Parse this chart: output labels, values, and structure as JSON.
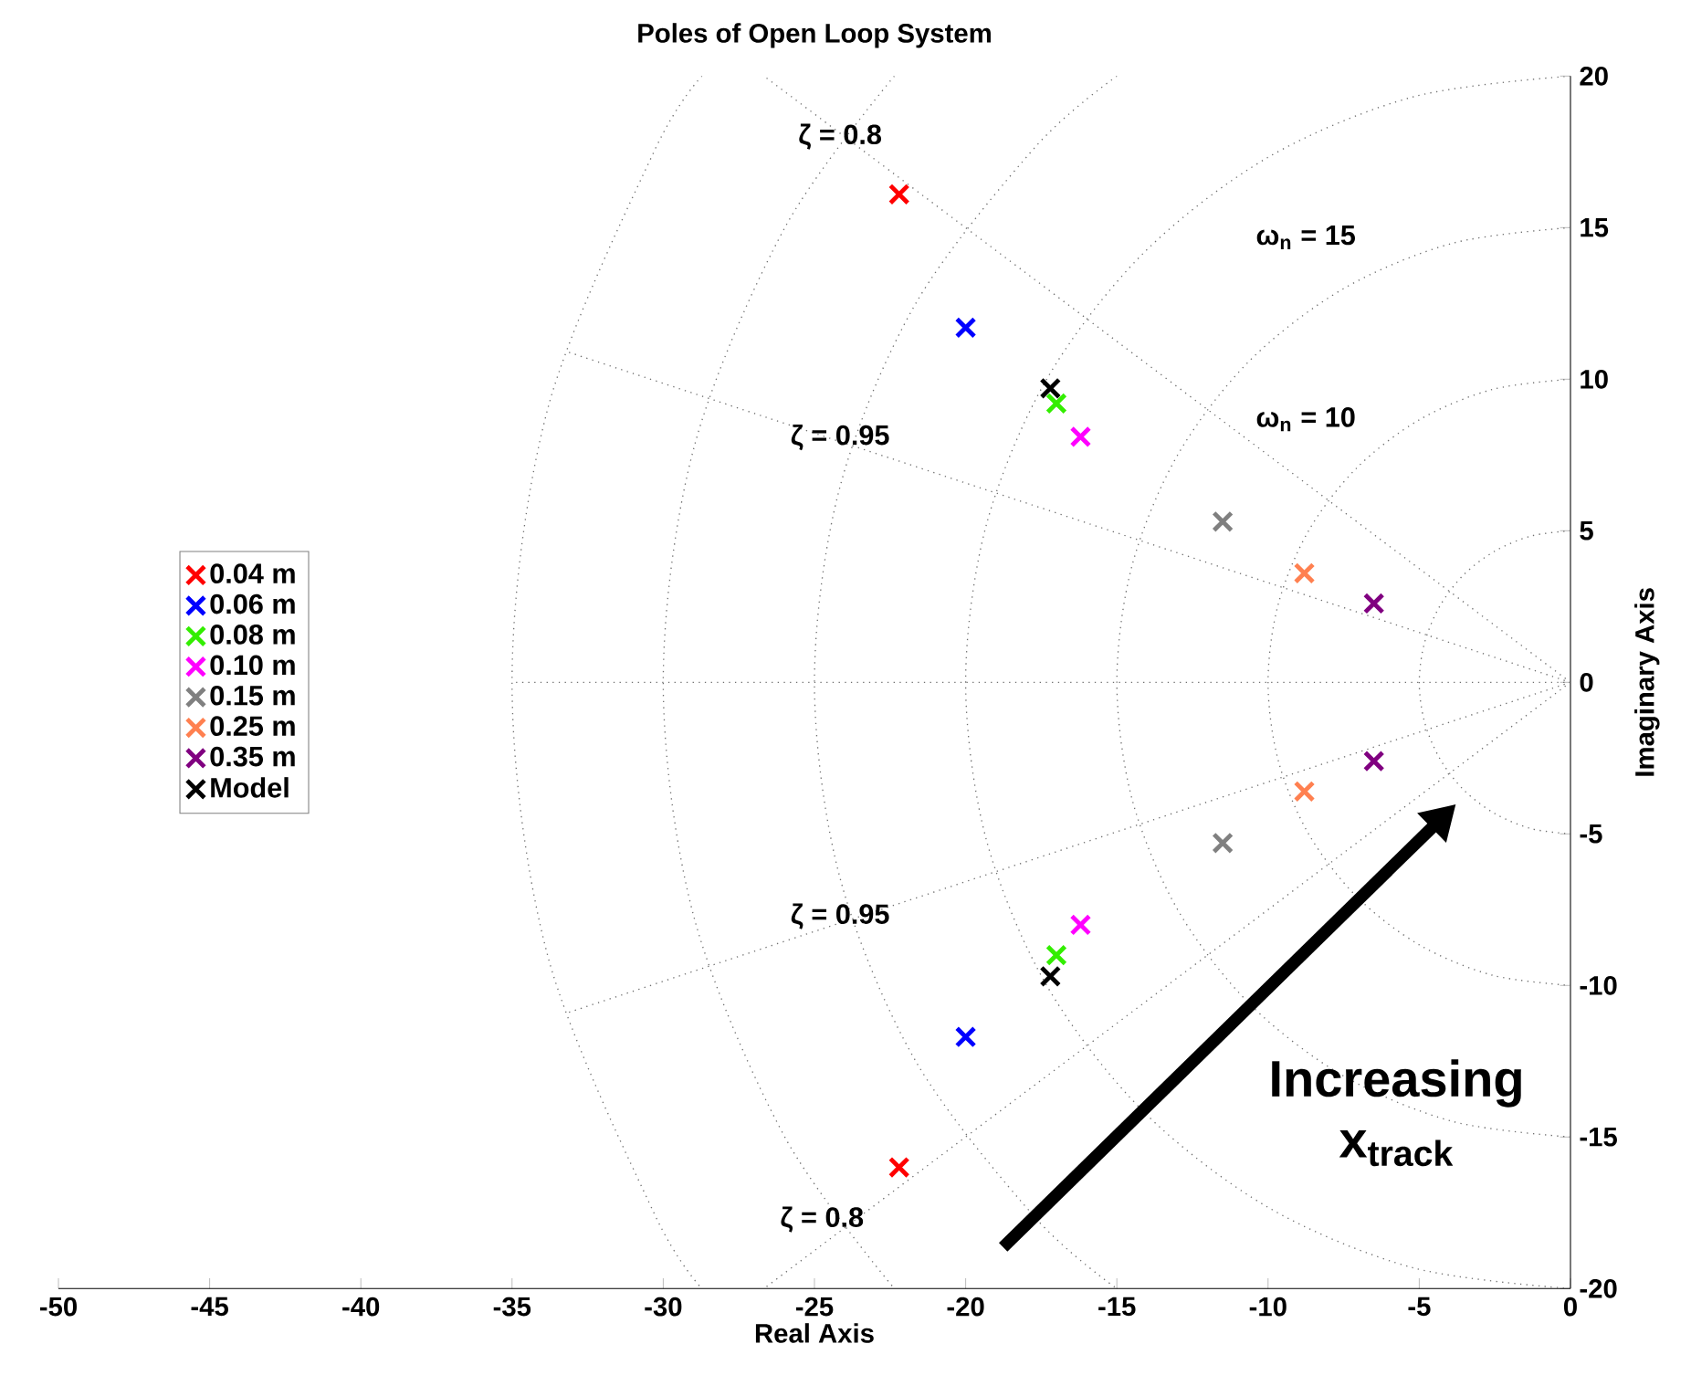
{
  "chart_data": {
    "type": "scatter",
    "title": "Poles of Open Loop System",
    "xlabel": "Real Axis",
    "ylabel": "Imaginary Axis",
    "xlim": [
      -50,
      0
    ],
    "ylim": [
      -20,
      20
    ],
    "xticks": [
      -50,
      -45,
      -40,
      -35,
      -30,
      -25,
      -20,
      -15,
      -10,
      -5,
      0
    ],
    "yticks": [
      -20,
      -15,
      -10,
      -5,
      0,
      5,
      10,
      15,
      20
    ],
    "marker": "cross",
    "legend": "left",
    "annotations": [
      "ζ = 0.8",
      "ζ = 0.95",
      "ζ = 0.95",
      "ζ = 0.8",
      "ω$_{n}$ = 15",
      "ω$_{n}$ = 10",
      "Increasing x$_{track}$"
    ],
    "series": [
      {
        "type": "line",
        "line_style": "dotted",
        "marker": "none",
        "color": "#707070",
        "x": [
          0,
          -26.67
        ],
        "values": [
          0,
          20
        ]
      },
      {
        "type": "line",
        "line_style": "dotted",
        "marker": "none",
        "color": "#707070",
        "x": [
          0,
          -26.67
        ],
        "values": [
          0,
          -20
        ]
      },
      {
        "type": "line",
        "line_style": "dotted",
        "marker": "none",
        "color": "#707070",
        "x": [
          0,
          -33.25
        ],
        "values": [
          0,
          10.93
        ]
      },
      {
        "type": "line",
        "line_style": "dotted",
        "marker": "none",
        "color": "#707070",
        "x": [
          0,
          -33.25
        ],
        "values": [
          0,
          -10.93
        ]
      },
      {
        "type": "line",
        "line_style": "dotted",
        "marker": "none",
        "color": "#707070",
        "x": [
          0,
          -35
        ],
        "values": [
          0,
          0
        ]
      },
      {
        "type": "line",
        "line_style": "dotted",
        "marker": "none",
        "color": "#707070",
        "x": [
          0,
          -1.29,
          -2.5,
          -3.54,
          -4.33,
          -4.83,
          -5,
          -4.83,
          -4.33,
          -3.54,
          -2.5,
          -1.29,
          0
        ],
        "values": [
          5,
          4.83,
          4.33,
          3.54,
          2.5,
          1.29,
          0,
          -1.29,
          -2.5,
          -3.54,
          -4.33,
          -4.83,
          -5
        ]
      },
      {
        "type": "line",
        "line_style": "dotted",
        "marker": "none",
        "color": "#707070",
        "x": [
          0,
          -2.59,
          -5,
          -7.07,
          -8.66,
          -9.66,
          -10,
          -9.66,
          -8.66,
          -7.07,
          -5,
          -2.59,
          0
        ],
        "values": [
          10,
          9.66,
          8.66,
          7.07,
          5,
          2.59,
          0,
          -2.59,
          -5,
          -7.07,
          -8.66,
          -9.66,
          -10
        ]
      },
      {
        "type": "line",
        "line_style": "dotted",
        "marker": "none",
        "color": "#707070",
        "x": [
          0,
          -3.88,
          -7.5,
          -10.61,
          -12.99,
          -14.49,
          -15,
          -14.49,
          -12.99,
          -10.61,
          -7.5,
          -3.88,
          0
        ],
        "values": [
          15,
          14.49,
          12.99,
          10.61,
          7.5,
          3.88,
          0,
          -3.88,
          -7.5,
          -10.61,
          -12.99,
          -14.49,
          -15
        ]
      },
      {
        "type": "line",
        "line_style": "dotted",
        "marker": "none",
        "color": "#707070",
        "x": [
          0,
          -5.18,
          -10,
          -14.14,
          -17.32,
          -19.32,
          -20,
          -19.32,
          -17.32,
          -14.14,
          -10,
          -5.18,
          0
        ],
        "values": [
          20,
          19.32,
          17.32,
          14.14,
          10,
          5.18,
          0,
          -5.18,
          -10,
          -14.14,
          -17.32,
          -19.32,
          -20
        ]
      },
      {
        "type": "line",
        "line_style": "dotted",
        "marker": "none",
        "color": "#707070",
        "x": [
          -15,
          -17.68,
          -21.65,
          -24.15,
          -25,
          -24.15,
          -21.65,
          -17.68,
          -15
        ],
        "values": [
          20,
          17.68,
          12.5,
          6.47,
          0,
          -6.47,
          -12.5,
          -17.68,
          -20
        ]
      },
      {
        "type": "line",
        "line_style": "dotted",
        "marker": "none",
        "color": "#707070",
        "x": [
          -22.36,
          -25.98,
          -28.98,
          -30,
          -28.98,
          -25.98,
          -22.36
        ],
        "values": [
          20,
          15,
          7.76,
          0,
          -7.76,
          -15,
          -20
        ]
      },
      {
        "type": "line",
        "line_style": "dotted",
        "marker": "none",
        "color": "#707070",
        "x": [
          -28.72,
          -30.31,
          -33.81,
          -35,
          -33.81,
          -30.31,
          -28.72
        ],
        "values": [
          20,
          17.5,
          9.06,
          0,
          -9.06,
          -17.5,
          -20
        ]
      },
      {
        "name": "0.04 m",
        "color": "#ff0000",
        "x": [
          -22.2,
          -22.2
        ],
        "values": [
          16.1,
          -16.0
        ]
      },
      {
        "name": "0.06 m",
        "color": "#0000ff",
        "x": [
          -20.0,
          -20.0
        ],
        "values": [
          11.7,
          -11.7
        ]
      },
      {
        "name": "0.08 m",
        "color": "#33ee00",
        "x": [
          -17.0,
          -17.0
        ],
        "values": [
          9.2,
          -9.0
        ]
      },
      {
        "name": "0.10 m",
        "color": "#ff00ff",
        "x": [
          -16.2,
          -16.2
        ],
        "values": [
          8.1,
          -8.0
        ]
      },
      {
        "name": "0.15 m",
        "color": "#808080",
        "x": [
          -11.5,
          -11.5
        ],
        "values": [
          5.3,
          -5.3
        ]
      },
      {
        "name": "0.25 m",
        "color": "#ff8050",
        "x": [
          -8.8,
          -8.8
        ],
        "values": [
          3.6,
          -3.6
        ]
      },
      {
        "name": "0.35 m",
        "color": "#800080",
        "x": [
          -6.5,
          -6.5
        ],
        "values": [
          2.6,
          -2.6
        ]
      },
      {
        "name": "Model",
        "color": "#000000",
        "x": [
          -17.2,
          -17.2
        ],
        "values": [
          9.7,
          -9.7
        ]
      }
    ]
  }
}
